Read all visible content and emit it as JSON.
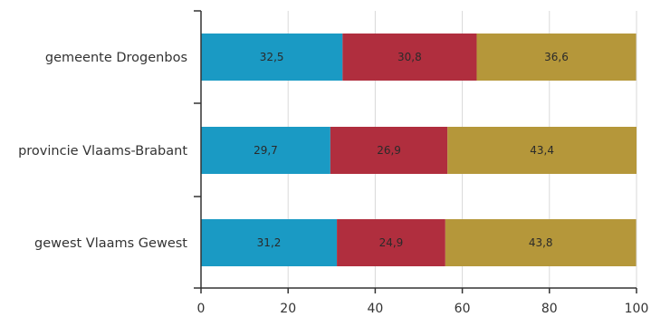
{
  "chart_data": {
    "type": "bar",
    "orientation": "horizontal",
    "stacked": true,
    "title": "",
    "xlabel": "",
    "ylabel": "",
    "categories": [
      "gemeente Drogenbos",
      "provincie Vlaams-Brabant",
      "gewest Vlaams Gewest"
    ],
    "series": [
      {
        "values": [
          32.5,
          29.7,
          31.2
        ],
        "labels": [
          "32,5",
          "29,7",
          "31,2"
        ],
        "color": "#1a9ac4"
      },
      {
        "values": [
          30.8,
          26.9,
          24.9
        ],
        "labels": [
          "30,8",
          "26,9",
          "24,9"
        ],
        "color": "#b02e3e"
      },
      {
        "values": [
          36.6,
          43.4,
          43.8
        ],
        "labels": [
          "36,6",
          "43,4",
          "43,8"
        ],
        "color": "#b5973a"
      }
    ],
    "xlim": [
      0,
      100
    ],
    "xticks": [
      "0",
      "20",
      "40",
      "60",
      "80",
      "100"
    ],
    "grid": true,
    "legend": false
  }
}
